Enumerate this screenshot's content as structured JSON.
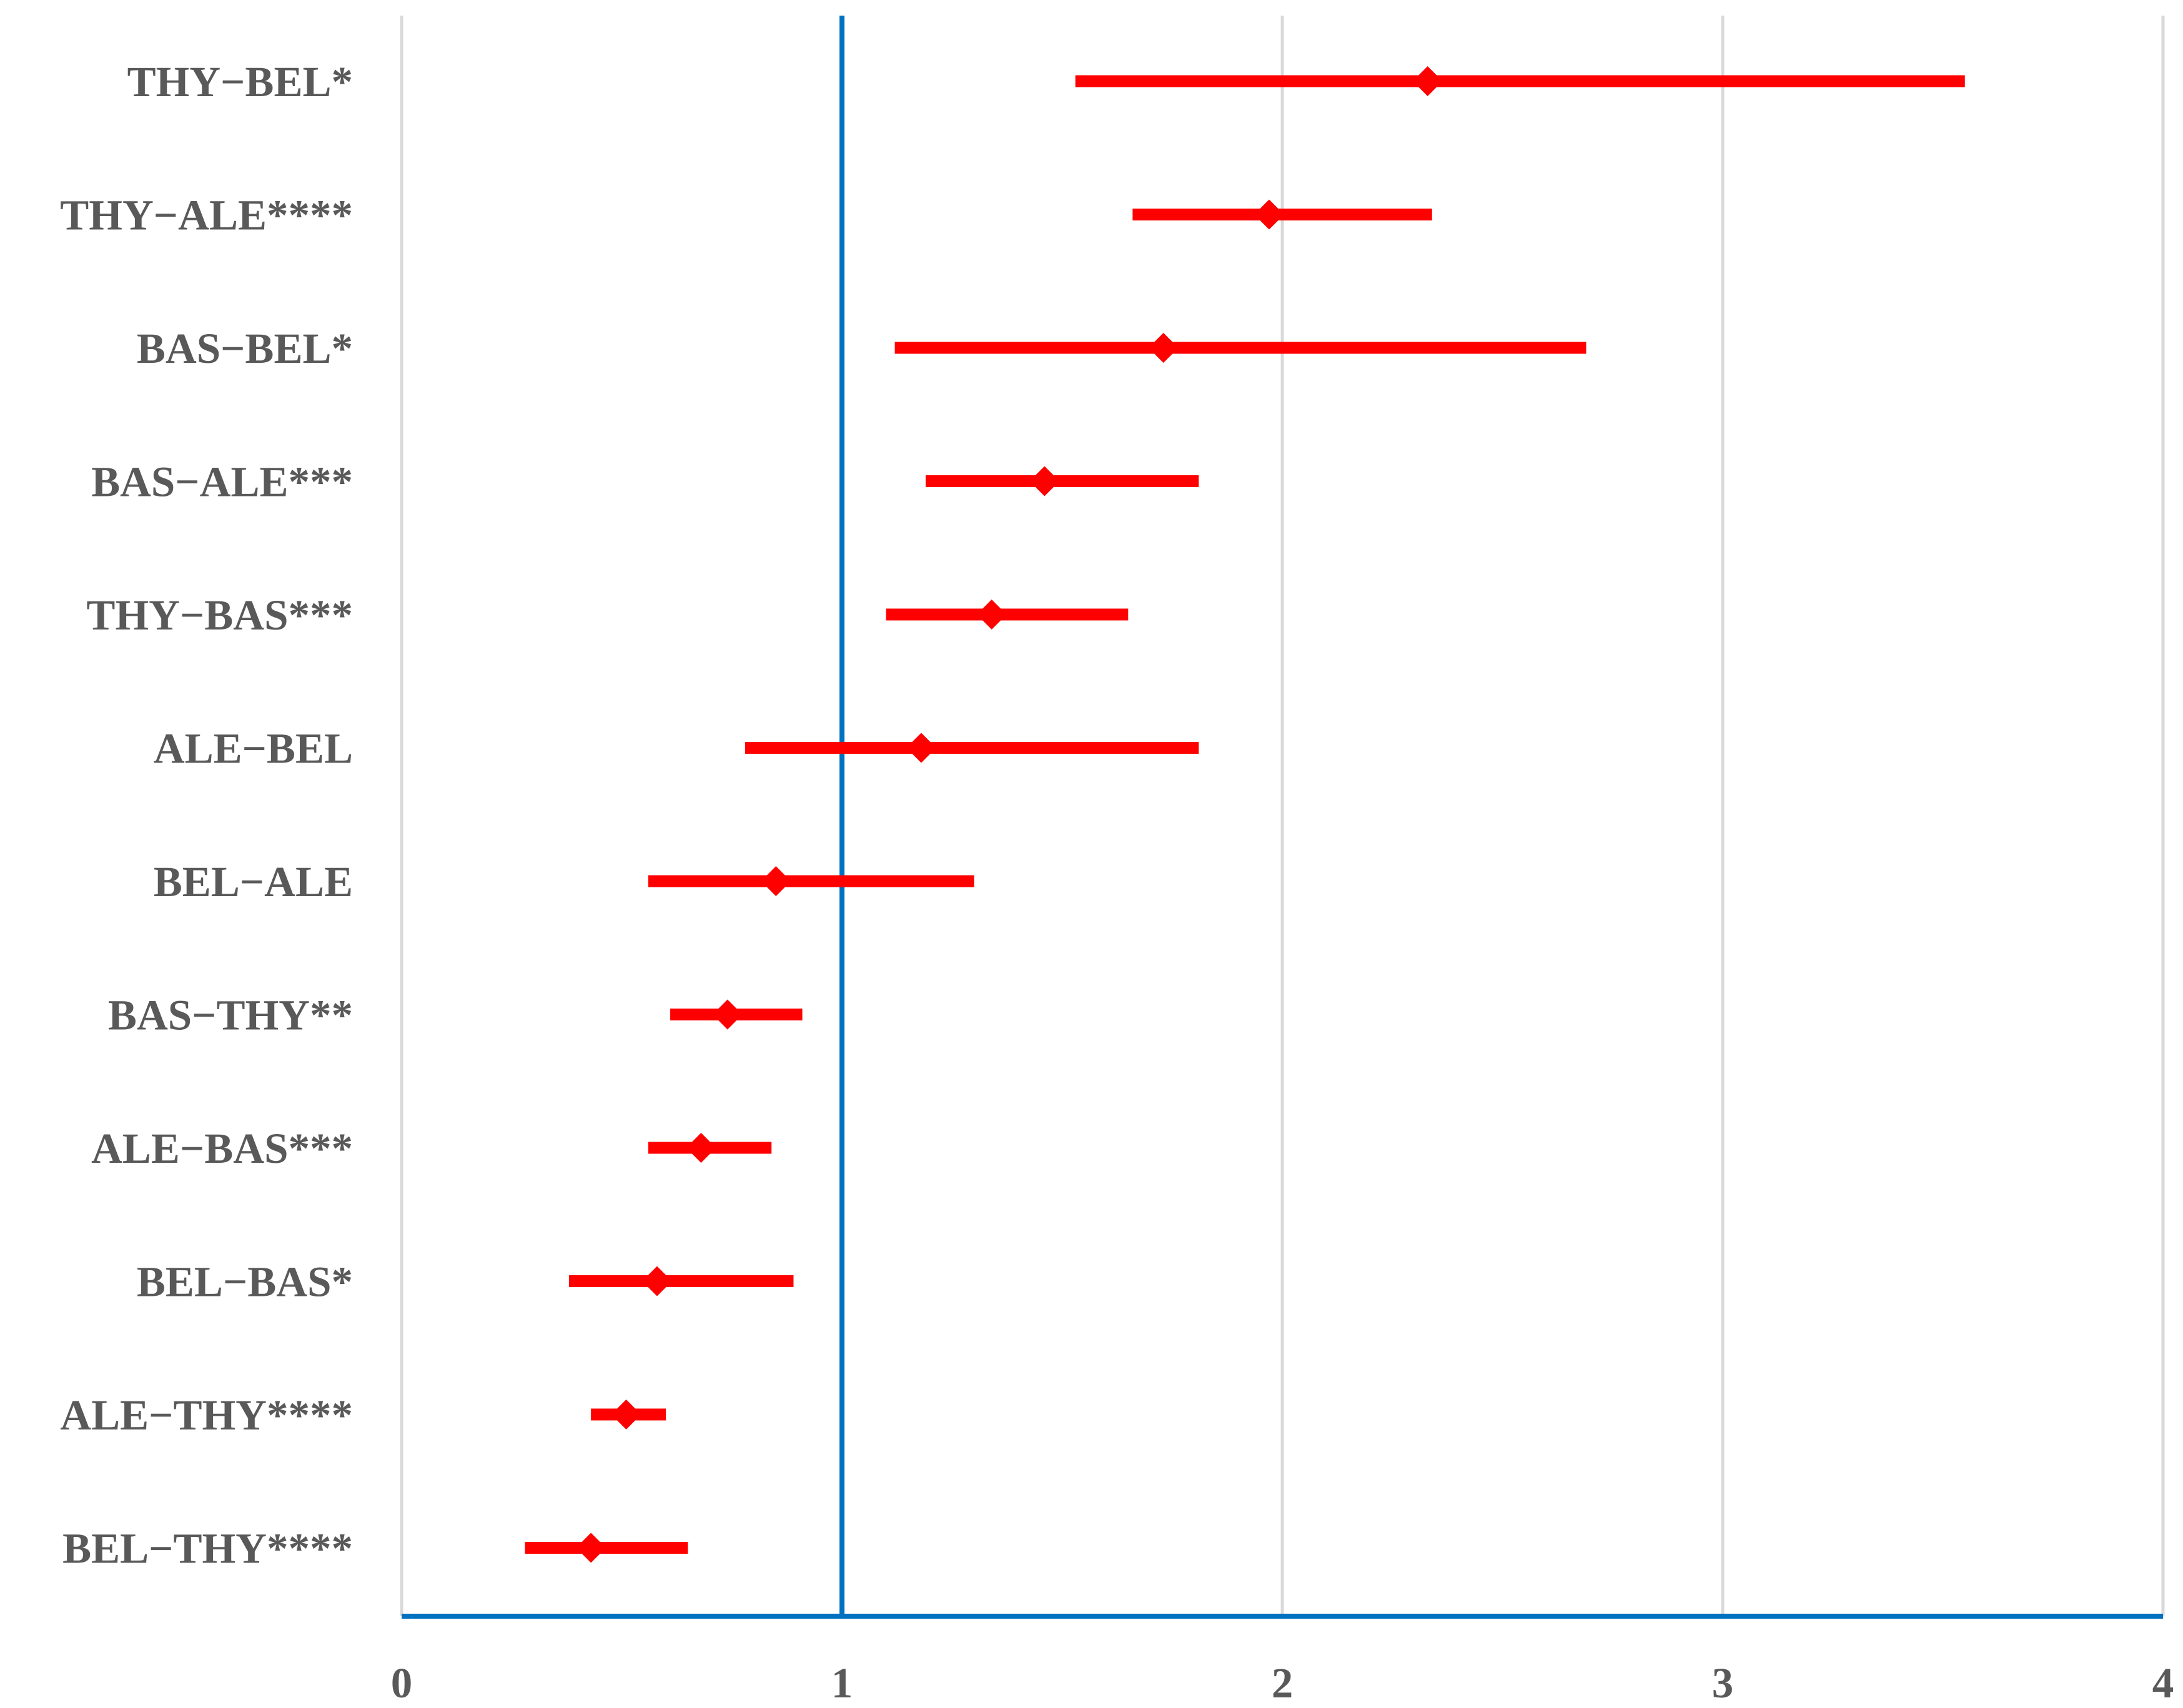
{
  "chart_data": {
    "type": "forest",
    "categories": [
      "THY−BEL*",
      "THY−ALE****",
      "BAS−BEL*",
      "BAS−ALE***",
      "THY−BAS***",
      "ALE−BEL",
      "BEL−ALE",
      "BAS−THY**",
      "ALE−BAS***",
      "BEL−BAS*",
      "ALE−THY****",
      "BEL−THY****"
    ],
    "estimates": [
      2.33,
      1.97,
      1.73,
      1.46,
      1.34,
      1.18,
      0.85,
      0.74,
      0.68,
      0.58,
      0.51,
      0.43
    ],
    "lower": [
      1.53,
      1.66,
      1.12,
      1.19,
      1.1,
      0.78,
      0.56,
      0.61,
      0.56,
      0.38,
      0.43,
      0.28
    ],
    "upper": [
      3.55,
      2.34,
      2.69,
      1.81,
      1.65,
      1.81,
      1.3,
      0.91,
      0.84,
      0.89,
      0.6,
      0.65
    ],
    "xlim": [
      0,
      4
    ],
    "xticks": [
      "0",
      "1",
      "2",
      "3",
      "4"
    ],
    "reference_line": 1,
    "grid": "vertical",
    "colors": {
      "interval": "#ff0000",
      "reference": "#0070c0",
      "axis": "#0070c0",
      "grid": "#d9d9d9",
      "text": "#595959"
    }
  }
}
